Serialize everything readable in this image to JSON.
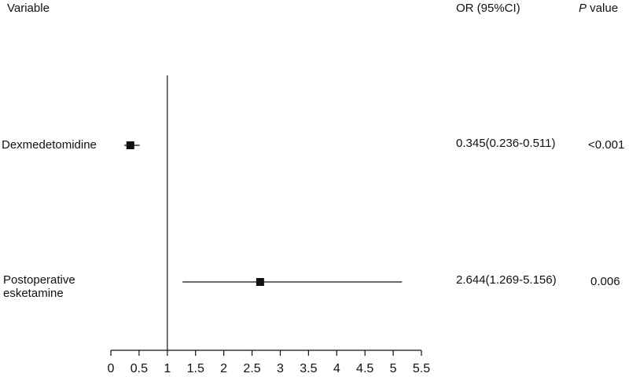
{
  "headers": {
    "variable": "Variable",
    "or": "OR (95%CI)",
    "p_italic": "P",
    "p_rest": " value"
  },
  "rows": [
    {
      "label": "Dexmedetomidine",
      "or_text": "0.345(0.236-0.511)",
      "p_text": "<0.001"
    },
    {
      "label": "Postoperative\nesketamine",
      "or_text": "2.644(1.269-5.156)",
      "p_text": "0.006"
    }
  ],
  "colors": {
    "ink": "#111111",
    "background": "#ffffff"
  },
  "chart_data": {
    "type": "forest",
    "reference_line": 1,
    "xlim": [
      0,
      5.5
    ],
    "xticks": [
      0,
      0.5,
      1,
      1.5,
      2,
      2.5,
      3,
      3.5,
      4,
      4.5,
      5,
      5.5
    ],
    "xtick_labels": [
      "0",
      "0.5",
      "1",
      "1.5",
      "2",
      "2.5",
      "3",
      "3.5",
      "4",
      "4.5",
      "5",
      "5.5"
    ],
    "estimates": [
      {
        "name": "Dexmedetomidine",
        "or": 0.345,
        "ci_low": 0.236,
        "ci_high": 0.511
      },
      {
        "name": "Postoperative esketamine",
        "or": 2.644,
        "ci_low": 1.269,
        "ci_high": 5.156
      }
    ]
  }
}
